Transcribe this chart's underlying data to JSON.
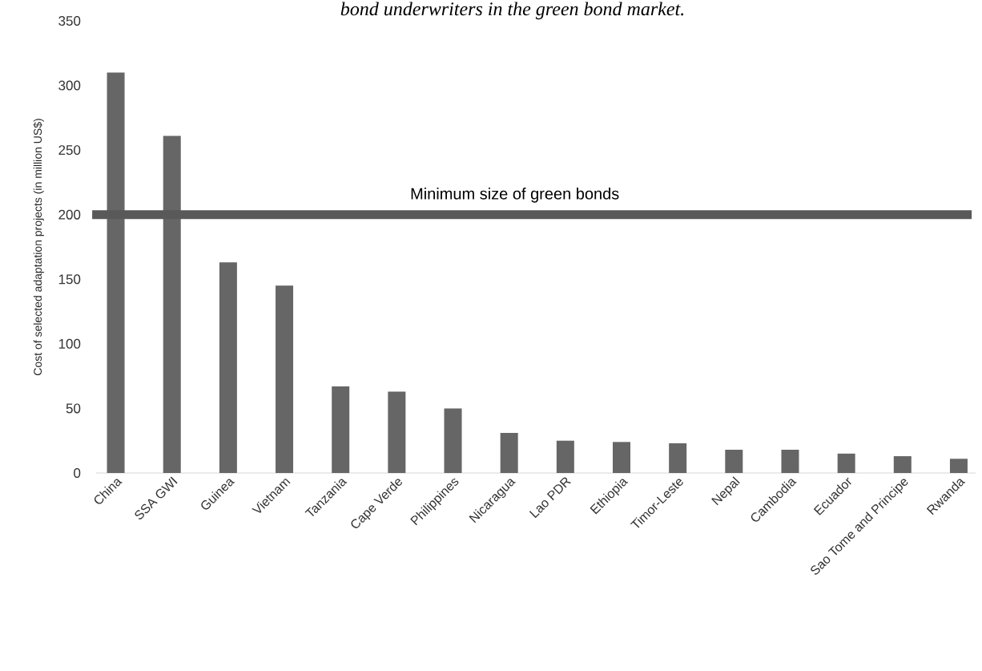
{
  "chart_data": {
    "type": "bar",
    "title": "bond underwriters in the green bond market.",
    "ylabel": "Cost of selected adaptation projects (in million US$)",
    "categories": [
      "China",
      "SSA GWI",
      "Guinea",
      "Vietnam",
      "Tanzania",
      "Cape Verde",
      "Philippines",
      "Nicaragua",
      "Lao PDR",
      "Ethiopia",
      "Timor-Leste",
      "Nepal",
      "Cambodia",
      "Ecuador",
      "Sao Tome and Principe",
      "Rwanda"
    ],
    "values": [
      310,
      261,
      163,
      145,
      67,
      63,
      50,
      31,
      25,
      24,
      23,
      18,
      18,
      15,
      13,
      11
    ],
    "color": "#666666",
    "ylim": [
      0,
      350
    ],
    "yticks": [
      0,
      50,
      100,
      150,
      200,
      250,
      300,
      350
    ],
    "ref_lines": [
      {
        "axis": "y",
        "value": 200,
        "label": "Minimum size of green bonds",
        "color": "#595959"
      }
    ],
    "grid": false
  }
}
